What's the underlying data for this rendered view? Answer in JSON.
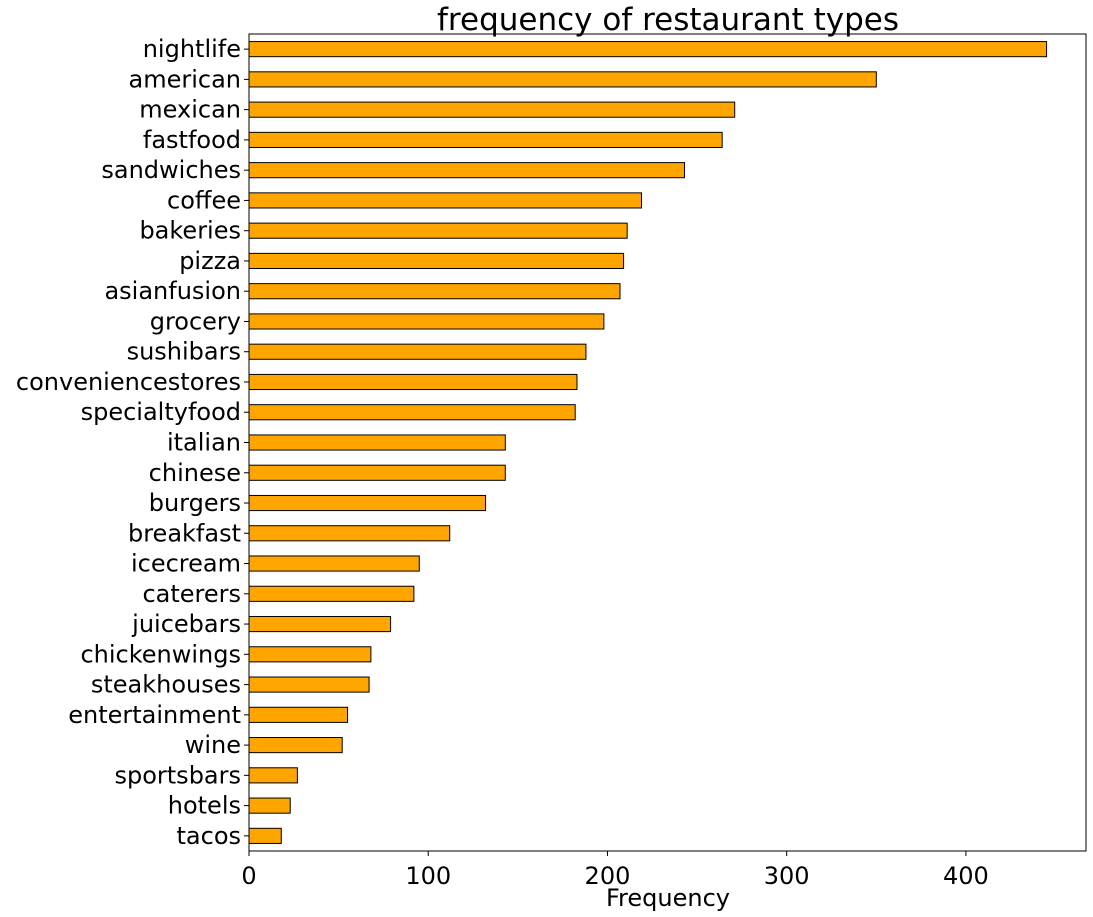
{
  "chart_data": {
    "type": "bar",
    "orientation": "horizontal",
    "title": "frequency of restaurant types",
    "xlabel": "Frequency",
    "ylabel": "",
    "xlim": [
      0,
      467
    ],
    "xticks": [
      0,
      100,
      200,
      300,
      400
    ],
    "grid": false,
    "legend": "none",
    "bar_color": "#FFA500",
    "edge_color": "#000000",
    "categories": [
      "nightlife",
      "american",
      "mexican",
      "fastfood",
      "sandwiches",
      "coffee",
      "bakeries",
      "pizza",
      "asianfusion",
      "grocery",
      "sushibars",
      "conveniencestores",
      "specialtyfood",
      "italian",
      "chinese",
      "burgers",
      "breakfast",
      "icecream",
      "caterers",
      "juicebars",
      "chickenwings",
      "steakhouses",
      "entertainment",
      "wine",
      "sportsbars",
      "hotels",
      "tacos"
    ],
    "values": [
      445,
      350,
      271,
      264,
      243,
      219,
      211,
      209,
      207,
      198,
      188,
      183,
      182,
      143,
      143,
      132,
      112,
      95,
      92,
      79,
      68,
      67,
      55,
      52,
      27,
      23,
      18
    ]
  }
}
